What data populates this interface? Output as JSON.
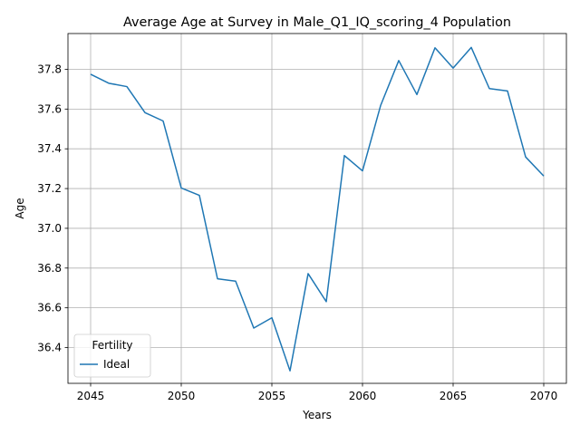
{
  "chart_data": {
    "type": "line",
    "title": "Average Age at Survey in Male_Q1_IQ_scoring_4 Population",
    "xlabel": "Years",
    "ylabel": "Age",
    "xlim": [
      2043.75,
      2071.25
    ],
    "ylim": [
      36.22,
      37.98
    ],
    "xticks": [
      2045,
      2050,
      2055,
      2060,
      2065,
      2070
    ],
    "yticks": [
      36.4,
      36.6,
      36.8,
      37.0,
      37.2,
      37.4,
      37.6,
      37.8
    ],
    "grid": true,
    "legend": {
      "title": "Fertility",
      "placement": "lower-left"
    },
    "series": [
      {
        "name": "Ideal",
        "color": "#1f77b4",
        "x": [
          2045,
          2046,
          2047,
          2048,
          2049,
          2050,
          2051,
          2052,
          2053,
          2054,
          2055,
          2056,
          2057,
          2058,
          2059,
          2060,
          2061,
          2062,
          2063,
          2064,
          2065,
          2066,
          2067,
          2068,
          2069,
          2070
        ],
        "y": [
          37.775,
          37.73,
          37.713,
          37.582,
          37.54,
          37.203,
          37.166,
          36.746,
          36.734,
          36.498,
          36.55,
          36.283,
          36.772,
          36.631,
          37.366,
          37.289,
          37.618,
          37.844,
          37.673,
          37.908,
          37.806,
          37.91,
          37.703,
          37.691,
          37.359,
          37.263
        ]
      }
    ]
  }
}
